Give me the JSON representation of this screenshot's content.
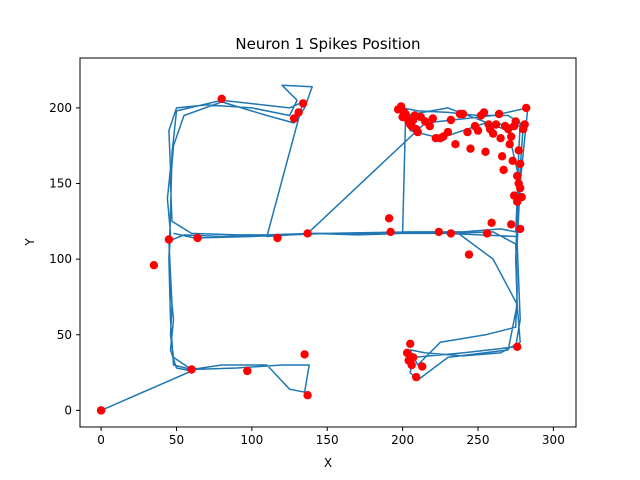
{
  "chart_data": {
    "type": "scatter",
    "title": "Neuron 1 Spikes Position",
    "xlabel": "X",
    "ylabel": "Y",
    "xlim": [
      -14,
      315
    ],
    "ylim": [
      -11,
      233
    ],
    "xticks": [
      0,
      50,
      100,
      150,
      200,
      250,
      300
    ],
    "yticks": [
      0,
      50,
      100,
      150,
      200
    ],
    "grid": false,
    "colors": {
      "trajectory": "#1f77b4",
      "spikes": "#ff0000"
    },
    "trajectory_waypoints": [
      [
        0,
        0
      ],
      [
        60,
        26
      ],
      [
        50,
        28
      ],
      [
        46,
        40
      ],
      [
        48,
        60
      ],
      [
        46,
        80
      ],
      [
        45,
        100
      ],
      [
        46,
        117
      ],
      [
        44,
        140
      ],
      [
        46,
        160
      ],
      [
        45,
        185
      ],
      [
        50,
        200
      ],
      [
        70,
        202
      ],
      [
        100,
        200
      ],
      [
        125,
        195
      ],
      [
        130,
        205
      ],
      [
        120,
        215
      ],
      [
        140,
        214
      ],
      [
        135,
        200
      ],
      [
        128,
        190
      ],
      [
        110,
        195
      ],
      [
        80,
        204
      ],
      [
        55,
        195
      ],
      [
        48,
        175
      ],
      [
        46,
        150
      ],
      [
        47,
        125
      ],
      [
        60,
        117
      ],
      [
        90,
        116
      ],
      [
        120,
        116
      ],
      [
        150,
        117
      ],
      [
        180,
        117
      ],
      [
        210,
        118
      ],
      [
        240,
        118
      ],
      [
        265,
        120
      ],
      [
        275,
        118
      ],
      [
        276,
        140
      ],
      [
        277,
        170
      ],
      [
        278,
        190
      ],
      [
        270,
        195
      ],
      [
        250,
        195
      ],
      [
        230,
        197
      ],
      [
        210,
        198
      ],
      [
        200,
        200
      ],
      [
        205,
        185
      ],
      [
        225,
        180
      ],
      [
        255,
        190
      ],
      [
        280,
        188
      ],
      [
        278,
        160
      ],
      [
        276,
        130
      ],
      [
        275,
        100
      ],
      [
        276,
        70
      ],
      [
        278,
        45
      ],
      [
        265,
        38
      ],
      [
        240,
        36
      ],
      [
        215,
        38
      ],
      [
        205,
        40
      ],
      [
        210,
        30
      ],
      [
        225,
        45
      ],
      [
        255,
        50
      ],
      [
        275,
        55
      ],
      [
        276,
        80
      ],
      [
        275,
        110
      ],
      [
        260,
        118
      ],
      [
        230,
        117
      ],
      [
        200,
        117
      ],
      [
        170,
        116
      ],
      [
        140,
        117
      ],
      [
        110,
        116
      ],
      [
        80,
        115
      ],
      [
        55,
        116
      ],
      [
        45,
        112
      ],
      [
        46,
        90
      ],
      [
        47,
        70
      ],
      [
        46,
        50
      ],
      [
        48,
        35
      ],
      [
        60,
        27
      ],
      [
        90,
        28
      ],
      [
        120,
        30
      ],
      [
        138,
        30
      ],
      [
        135,
        12
      ],
      [
        125,
        14
      ],
      [
        110,
        30
      ],
      [
        80,
        30
      ],
      [
        60,
        27
      ],
      [
        48,
        30
      ],
      [
        46,
        60
      ],
      [
        45,
        100
      ],
      [
        46,
        130
      ],
      [
        47,
        170
      ],
      [
        50,
        198
      ],
      [
        80,
        205
      ],
      [
        125,
        200
      ],
      [
        134,
        204
      ],
      [
        110,
        115
      ],
      [
        140,
        117
      ],
      [
        200,
        117
      ],
      [
        202,
        195
      ],
      [
        230,
        200
      ],
      [
        270,
        185
      ],
      [
        278,
        150
      ],
      [
        276,
        110
      ],
      [
        278,
        60
      ],
      [
        275,
        42
      ],
      [
        240,
        38
      ],
      [
        207,
        35
      ],
      [
        205,
        25
      ],
      [
        210,
        20
      ],
      [
        230,
        35
      ],
      [
        270,
        40
      ],
      [
        276,
        70
      ],
      [
        260,
        100
      ],
      [
        237,
        117
      ],
      [
        137,
        117
      ],
      [
        215,
        190
      ],
      [
        260,
        195
      ],
      [
        283,
        200
      ],
      [
        280,
        170
      ],
      [
        277,
        140
      ],
      [
        276,
        115
      ],
      [
        205,
        118
      ],
      [
        150,
        117
      ],
      [
        100,
        115
      ],
      [
        62,
        114
      ],
      [
        48,
        117
      ]
    ],
    "spikes": [
      [
        0,
        0
      ],
      [
        0,
        0
      ],
      [
        35,
        96
      ],
      [
        45,
        113
      ],
      [
        64,
        114
      ],
      [
        60,
        27
      ],
      [
        80,
        206
      ],
      [
        97,
        26
      ],
      [
        117,
        114
      ],
      [
        128,
        193
      ],
      [
        131,
        197
      ],
      [
        134,
        203
      ],
      [
        135,
        37
      ],
      [
        137,
        10
      ],
      [
        137,
        117
      ],
      [
        191,
        127
      ],
      [
        192,
        118
      ],
      [
        197,
        199
      ],
      [
        199,
        201
      ],
      [
        200,
        194
      ],
      [
        201,
        197
      ],
      [
        202,
        196
      ],
      [
        203,
        193
      ],
      [
        204,
        191
      ],
      [
        205,
        189
      ],
      [
        206,
        188
      ],
      [
        207,
        192
      ],
      [
        208,
        195
      ],
      [
        209,
        186
      ],
      [
        210,
        184
      ],
      [
        212,
        194
      ],
      [
        215,
        191
      ],
      [
        218,
        188
      ],
      [
        220,
        193
      ],
      [
        222,
        180
      ],
      [
        225,
        180
      ],
      [
        227,
        181
      ],
      [
        230,
        184
      ],
      [
        232,
        192
      ],
      [
        235,
        176
      ],
      [
        238,
        196
      ],
      [
        240,
        196
      ],
      [
        243,
        184
      ],
      [
        245,
        173
      ],
      [
        248,
        188
      ],
      [
        250,
        185
      ],
      [
        252,
        195
      ],
      [
        254,
        197
      ],
      [
        255,
        171
      ],
      [
        257,
        189
      ],
      [
        258,
        186
      ],
      [
        260,
        183
      ],
      [
        262,
        189
      ],
      [
        264,
        196
      ],
      [
        265,
        180
      ],
      [
        266,
        168
      ],
      [
        267,
        159
      ],
      [
        268,
        188
      ],
      [
        270,
        186
      ],
      [
        271,
        176
      ],
      [
        272,
        181
      ],
      [
        273,
        165
      ],
      [
        274,
        188
      ],
      [
        275,
        191
      ],
      [
        276,
        155
      ],
      [
        277,
        150
      ],
      [
        277,
        172
      ],
      [
        278,
        163
      ],
      [
        278,
        147
      ],
      [
        279,
        141
      ],
      [
        280,
        186
      ],
      [
        281,
        189
      ],
      [
        282,
        200
      ],
      [
        276,
        138
      ],
      [
        274,
        142
      ],
      [
        272,
        123
      ],
      [
        278,
        120
      ],
      [
        259,
        124
      ],
      [
        256,
        117
      ],
      [
        232,
        117
      ],
      [
        224,
        118
      ],
      [
        244,
        103
      ],
      [
        276,
        42
      ],
      [
        203,
        38
      ],
      [
        204,
        33
      ],
      [
        205,
        44
      ],
      [
        206,
        30
      ],
      [
        207,
        35
      ],
      [
        209,
        22
      ],
      [
        213,
        29
      ]
    ]
  }
}
